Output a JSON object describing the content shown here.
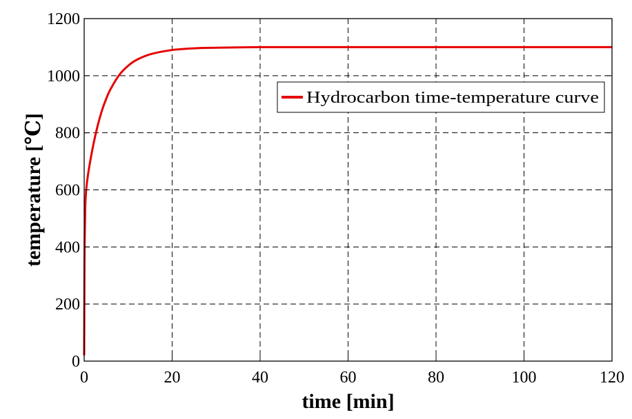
{
  "chart_data": {
    "type": "line",
    "title": "",
    "xlabel": "time [min]",
    "ylabel": "temperature [℃]",
    "xlim": [
      0,
      120
    ],
    "ylim": [
      0,
      1200
    ],
    "xticks": [
      0,
      20,
      40,
      60,
      80,
      100,
      120
    ],
    "yticks": [
      0,
      200,
      400,
      600,
      800,
      1000,
      1200
    ],
    "grid": true,
    "grid_style": "dashed",
    "legend_position": "upper-right",
    "series": [
      {
        "name": "Hydrocarbon time-temperature curve",
        "color": "#e60000",
        "x": [
          0,
          0.05,
          0.1,
          0.25,
          0.5,
          1,
          2,
          3,
          4,
          5,
          6,
          8,
          10,
          12,
          15,
          20,
          25,
          30,
          40,
          50,
          60,
          80,
          100,
          120
        ],
        "y": [
          20,
          240,
          390,
          542,
          606,
          666,
          752,
          821,
          876,
          919,
          953,
          1003,
          1035,
          1056,
          1075,
          1090,
          1096,
          1098,
          1100,
          1100,
          1100,
          1100,
          1100,
          1100
        ]
      }
    ]
  }
}
